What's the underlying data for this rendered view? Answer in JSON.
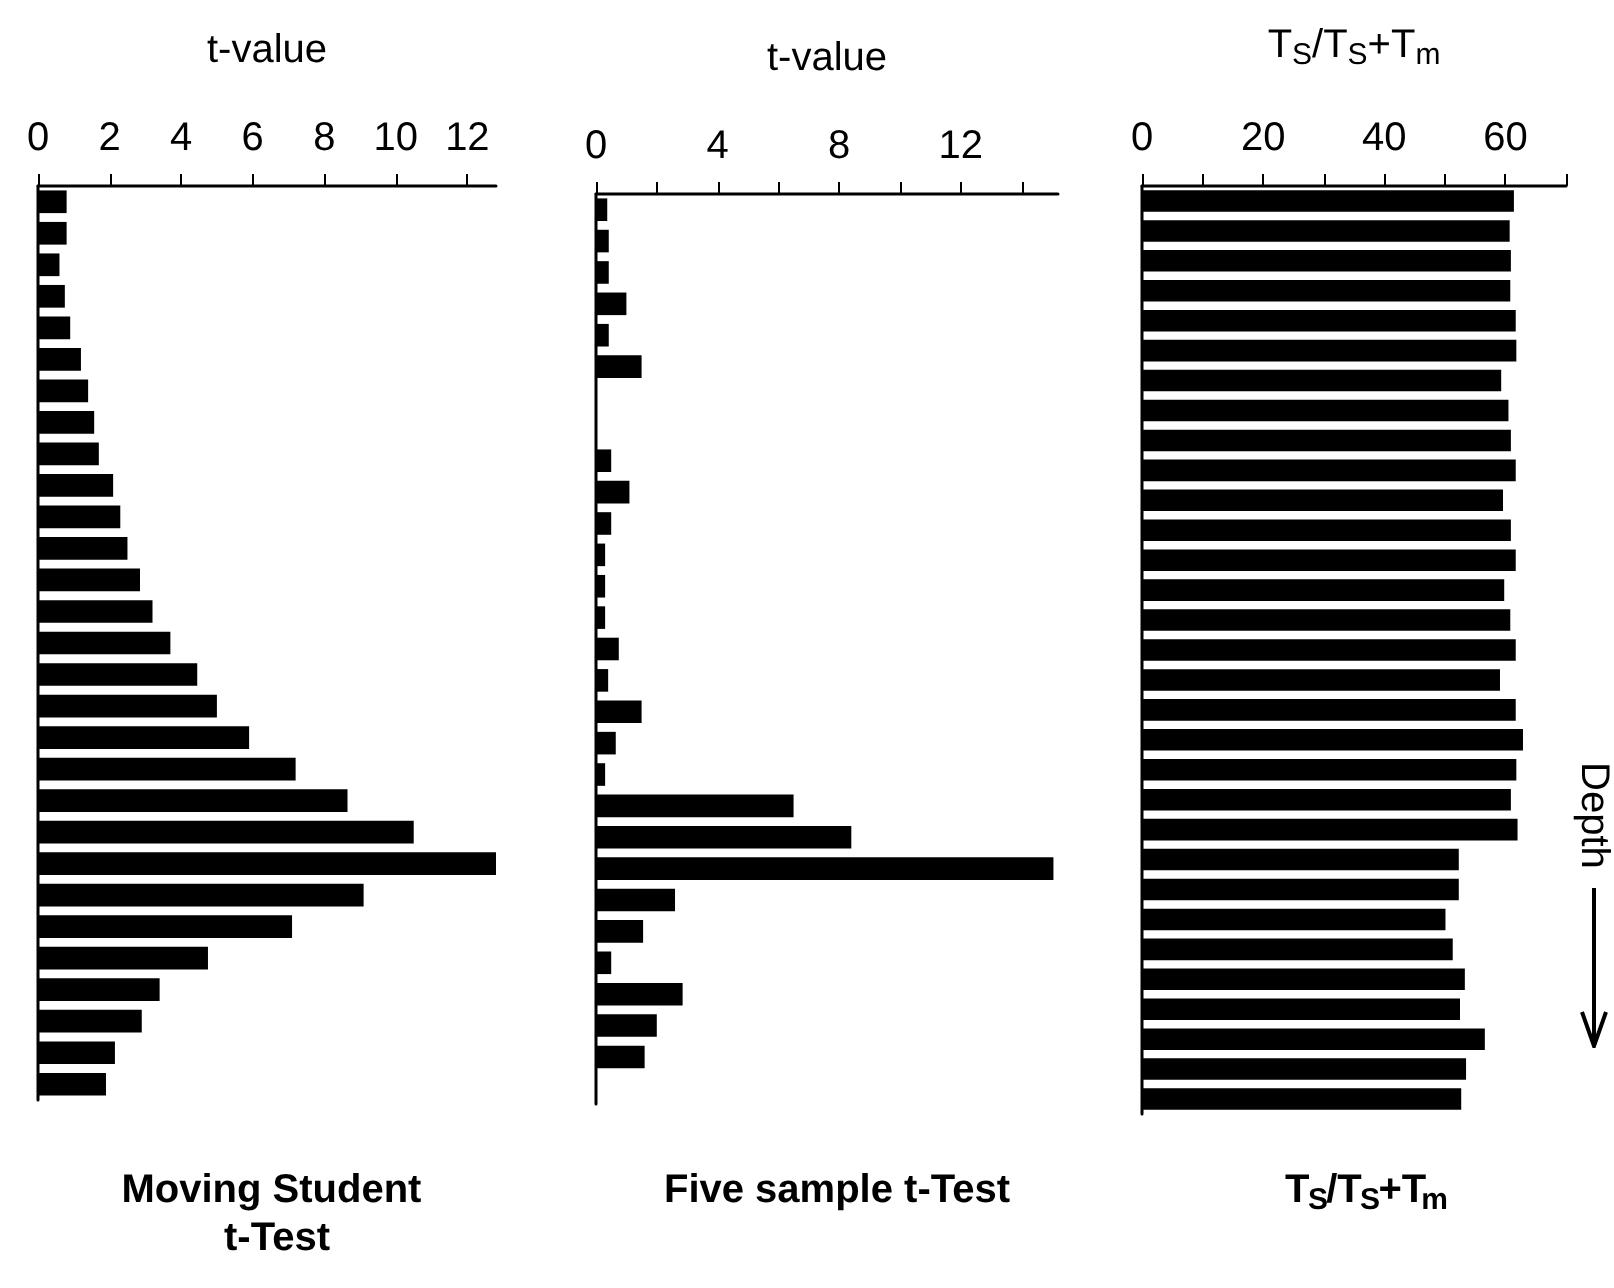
{
  "chart_data": [
    {
      "type": "bar",
      "orientation": "horizontal",
      "title": "Moving Student t-Test",
      "xlabel": "t-value",
      "color": "#000000",
      "tick_labels": "x",
      "xlim": [
        0,
        12.8
      ],
      "xticks": [
        0,
        2,
        4,
        6,
        8,
        10,
        12
      ],
      "categories": [
        null,
        null,
        null,
        null,
        null,
        null,
        null,
        null,
        null,
        null,
        null,
        null,
        null,
        null,
        null,
        null,
        null,
        null,
        null,
        null,
        null,
        null,
        null,
        null,
        null,
        null,
        null,
        null,
        null
      ],
      "values": [
        0.8,
        0.8,
        0.6,
        0.75,
        0.9,
        1.2,
        1.4,
        1.57,
        1.7,
        2.1,
        2.3,
        2.5,
        2.85,
        3.2,
        3.7,
        4.45,
        5.0,
        5.9,
        7.2,
        8.65,
        10.5,
        12.8,
        9.1,
        7.1,
        4.75,
        3.4,
        2.9,
        2.15,
        1.9
      ]
    },
    {
      "type": "bar",
      "orientation": "horizontal",
      "title": "Five sample t-Test",
      "xlabel": "t-value",
      "color": "#000000",
      "tick_labels": "x",
      "xlim": [
        0,
        15.2
      ],
      "xticks": [
        0,
        {
          "value": 2,
          "label": null
        },
        4,
        {
          "value": 6,
          "label": null
        },
        8,
        {
          "value": 10,
          "label": null
        },
        12,
        {
          "value": 14,
          "label": null
        }
      ],
      "categories": [
        null,
        null,
        null,
        null,
        null,
        null,
        null,
        null,
        null,
        null,
        null,
        null,
        null,
        null,
        null,
        null,
        null,
        null,
        null,
        null,
        null,
        null,
        null,
        null,
        null,
        null,
        null,
        null,
        null
      ],
      "values": [
        0.37,
        0.42,
        0.42,
        1.0,
        0.42,
        1.5,
        0,
        0,
        0.5,
        1.1,
        0.5,
        0.3,
        0.3,
        0.3,
        0.75,
        0.4,
        1.5,
        0.65,
        0.3,
        6.5,
        8.4,
        15.05,
        2.6,
        1.55,
        0.5,
        2.85,
        2.0,
        1.6,
        0
      ]
    },
    {
      "type": "bar",
      "orientation": "horizontal",
      "title": "T$_{S}$/T$_{S}$+T$_{m}$",
      "xlabel": "T$_{S}$/T$_{S}$+T$_{m}$",
      "color": "#000000",
      "tick_labels": "x",
      "xlim": [
        0,
        70
      ],
      "xticks": [
        0,
        {
          "value": 10,
          "label": null
        },
        20,
        {
          "value": 30,
          "label": null
        },
        40,
        {
          "value": 50,
          "label": null
        },
        60,
        {
          "value": 70,
          "label": null
        }
      ],
      "annotations": [
        "Depth"
      ],
      "categories": [
        null,
        null,
        null,
        null,
        null,
        null,
        null,
        null,
        null,
        null,
        null,
        null,
        null,
        null,
        null,
        null,
        null,
        null,
        null,
        null,
        null,
        null,
        null,
        null,
        null,
        null,
        null,
        null,
        null,
        null,
        null
      ],
      "values": [
        61.4,
        60.7,
        60.9,
        60.8,
        61.7,
        61.8,
        59.3,
        60.5,
        60.9,
        61.7,
        59.6,
        60.9,
        61.7,
        59.8,
        60.8,
        61.7,
        59.1,
        61.7,
        62.9,
        61.8,
        60.9,
        62.0,
        52.3,
        52.3,
        50.1,
        51.3,
        53.3,
        52.5,
        56.6,
        53.5,
        52.7
      ]
    }
  ]
}
